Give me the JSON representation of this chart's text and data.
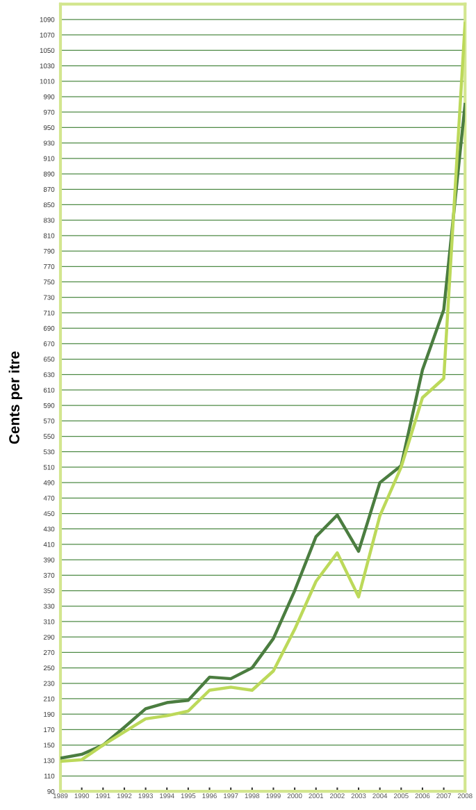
{
  "chart_data": {
    "type": "line",
    "ylabel": "Cents per itre",
    "x": [
      1989,
      1990,
      1991,
      1992,
      1993,
      1994,
      1995,
      1996,
      1997,
      1998,
      1999,
      2000,
      2001,
      2002,
      2003,
      2004,
      2005,
      2006,
      2007,
      2008
    ],
    "series": [
      {
        "color": "#4b7d40",
        "values": [
          133,
          138,
          150,
          173,
          197,
          205,
          208,
          238,
          236,
          250,
          288,
          350,
          420,
          448,
          401,
          490,
          512,
          636,
          714,
          980
        ]
      },
      {
        "color": "#bcd95a",
        "values": [
          129,
          131,
          150,
          167,
          184,
          188,
          194,
          221,
          225,
          221,
          246,
          300,
          362,
          399,
          342,
          447,
          510,
          600,
          625,
          1085
        ]
      }
    ],
    "xlim": [
      1989,
      2008
    ],
    "xticks": [
      1989,
      1990,
      1991,
      1992,
      1993,
      1994,
      1995,
      1996,
      1997,
      1998,
      1999,
      2000,
      2001,
      2002,
      2003,
      2004,
      2005,
      2006,
      2007,
      2008
    ],
    "ylim": [
      90,
      1110
    ],
    "yticks": [
      90,
      110,
      130,
      150,
      170,
      190,
      210,
      230,
      250,
      270,
      290,
      310,
      330,
      350,
      370,
      390,
      410,
      430,
      450,
      470,
      490,
      510,
      530,
      550,
      570,
      590,
      610,
      630,
      650,
      670,
      690,
      710,
      730,
      750,
      770,
      790,
      810,
      830,
      850,
      870,
      890,
      910,
      930,
      950,
      970,
      990,
      1010,
      1030,
      1050,
      1070,
      1090
    ],
    "grid": "y",
    "marker": "none",
    "line_style": "solid"
  }
}
